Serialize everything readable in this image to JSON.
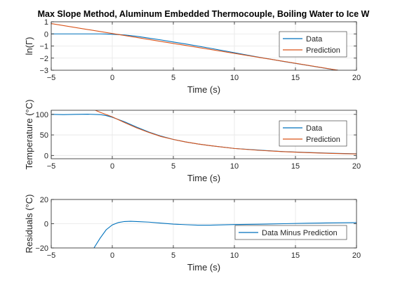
{
  "figure": {
    "title": "Max Slope Method, Aluminum Embedded Thermocouple, Boiling Water to Ice W"
  },
  "chart_data": [
    {
      "type": "line",
      "xlabel": "Time (s)",
      "ylabel": "ln(Γ)",
      "xlim": [
        -5,
        20
      ],
      "ylim": [
        -3,
        1
      ],
      "xticks": [
        -5,
        0,
        5,
        10,
        15,
        20
      ],
      "yticks": [
        -3,
        -2,
        -1,
        0,
        1
      ],
      "grid": true,
      "legend": "upper-right",
      "series": [
        {
          "name": "Data",
          "color": "#0072BD",
          "x": [
            -5,
            -3,
            -1,
            -0.5,
            0,
            1,
            2,
            3,
            4,
            5,
            6,
            8,
            10,
            12,
            14,
            16,
            18,
            18.5
          ],
          "y": [
            0,
            0,
            0,
            -0.01,
            -0.03,
            -0.09,
            -0.2,
            -0.35,
            -0.5,
            -0.67,
            -0.83,
            -1.18,
            -1.55,
            -1.92,
            -2.27,
            -2.6,
            -2.93,
            -3
          ]
        },
        {
          "name": "Prediction",
          "color": "#D95319",
          "x": [
            -5,
            18.5
          ],
          "y": [
            0.85,
            -3.0
          ]
        }
      ]
    },
    {
      "type": "line",
      "xlabel": "Time (s)",
      "ylabel": "Temperature (°C)",
      "xlim": [
        -5,
        20
      ],
      "ylim": [
        -8,
        110
      ],
      "xticks": [
        -5,
        0,
        5,
        10,
        15,
        20
      ],
      "yticks": [
        0,
        50,
        100
      ],
      "grid": true,
      "legend": "upper-right",
      "series": [
        {
          "name": "Data",
          "color": "#0072BD",
          "x": [
            -5,
            -4,
            -3,
            -2,
            -1,
            -0.5,
            0,
            1,
            2,
            3,
            4,
            5,
            6,
            7,
            8,
            10,
            12,
            14,
            16,
            18,
            20
          ],
          "y": [
            100,
            99.5,
            100,
            100.5,
            99.5,
            97,
            93,
            82,
            69,
            57,
            47,
            39,
            33,
            28,
            24,
            17,
            13,
            9.5,
            7.2,
            5.3,
            4.0
          ]
        },
        {
          "name": "Prediction",
          "color": "#D95319",
          "x": [
            -2.6,
            -2,
            -1,
            0,
            1,
            2,
            3,
            4,
            5,
            6,
            7,
            8,
            10,
            12,
            14,
            16,
            18,
            20
          ],
          "y": [
            130,
            118,
            105,
            94,
            80,
            67,
            56,
            46,
            39,
            33,
            28,
            24,
            17,
            12.5,
            9.2,
            6.8,
            5.0,
            3.7
          ]
        }
      ]
    },
    {
      "type": "line",
      "xlabel": "Time (s)",
      "ylabel": "Residuals (°C)",
      "xlim": [
        -5,
        20
      ],
      "ylim": [
        -20,
        20
      ],
      "xticks": [
        -5,
        0,
        5,
        10,
        15,
        20
      ],
      "yticks": [
        -20,
        0,
        20
      ],
      "grid": true,
      "legend": "lower-right",
      "series": [
        {
          "name": "Data Minus Prediction",
          "color": "#0072BD",
          "x": [
            -1.5,
            -1,
            -0.5,
            0,
            0.5,
            1,
            1.5,
            2,
            3,
            4,
            5,
            6,
            7,
            8,
            10,
            12,
            14,
            16,
            18,
            20
          ],
          "y": [
            -20,
            -12,
            -5,
            -1,
            1,
            1.8,
            2.0,
            1.8,
            1.3,
            0.5,
            -0.3,
            -0.8,
            -1.2,
            -1.2,
            -0.7,
            -0.4,
            0,
            0.4,
            0.7,
            0.9
          ]
        }
      ]
    }
  ]
}
